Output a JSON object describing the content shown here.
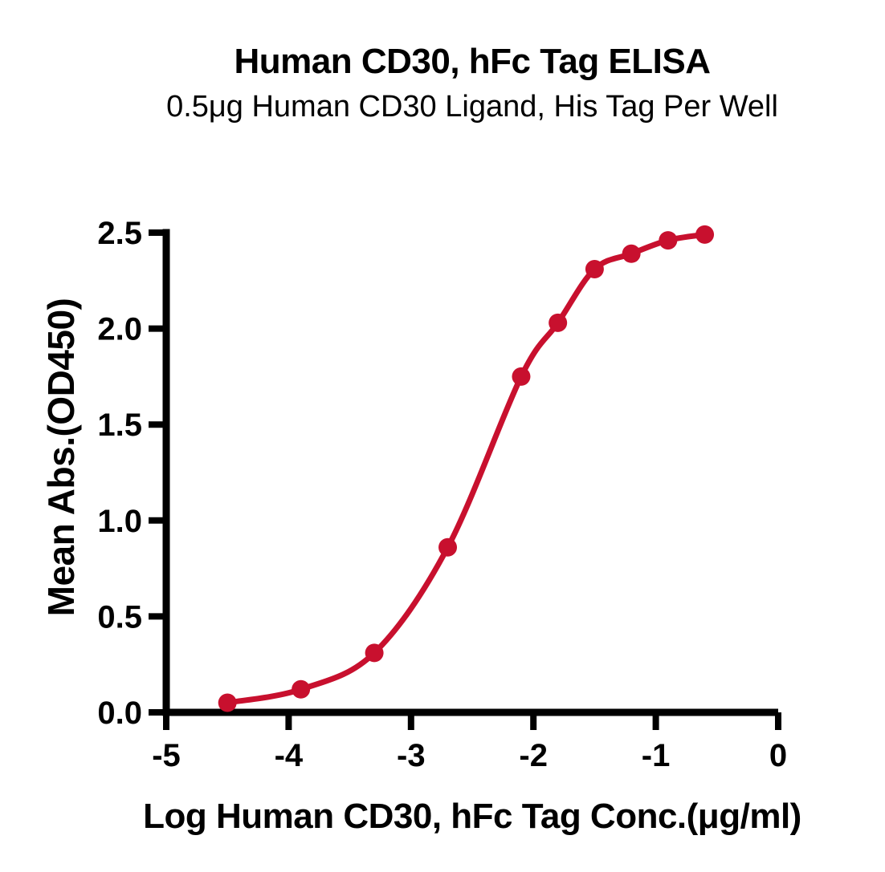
{
  "chart_data": {
    "type": "line",
    "title": "Human CD30, hFc Tag ELISA",
    "subtitle": "0.5μg Human CD30 Ligand, His Tag Per Well",
    "xlabel": "Log Human CD30, hFc Tag Conc.(μg/ml)",
    "ylabel": "Mean Abs.(OD450)",
    "xlim": [
      -5,
      0
    ],
    "ylim": [
      0.0,
      2.5
    ],
    "x_ticks": [
      "-5",
      "-4",
      "-3",
      "-2",
      "-1",
      "0"
    ],
    "y_ticks": [
      "0.0",
      "0.5",
      "1.0",
      "1.5",
      "2.0",
      "2.5"
    ],
    "grid": false,
    "legend": false,
    "series": [
      {
        "name": "Human CD30, hFc Tag",
        "color": "#C8102E",
        "marker": "circle",
        "x": [
          -4.5,
          -3.9,
          -3.3,
          -2.7,
          -2.1,
          -1.8,
          -1.5,
          -1.2,
          -0.9,
          -0.6
        ],
        "y": [
          0.05,
          0.12,
          0.31,
          0.86,
          1.75,
          2.03,
          2.31,
          2.39,
          2.46,
          2.49
        ]
      }
    ]
  },
  "colors": {
    "background": "#FFFFFF",
    "text": "#000000",
    "axis": "#000000",
    "curve": "#C8102E"
  }
}
